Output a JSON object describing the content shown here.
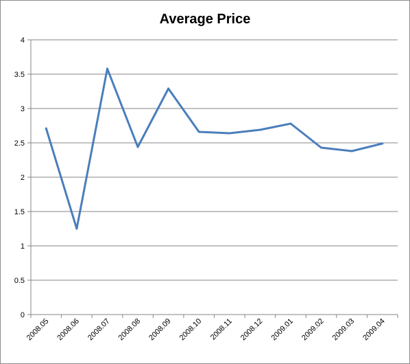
{
  "chart_data": {
    "type": "line",
    "title": "Average Price",
    "xlabel": "",
    "ylabel": "",
    "categories": [
      "2008.05",
      "2008.06",
      "2008.07",
      "2008.08",
      "2008.09",
      "2008.10",
      "2008.11",
      "2008.12",
      "2009.01",
      "2009.02",
      "2009.03",
      "2009.04"
    ],
    "series": [
      {
        "values": [
          2.71,
          1.25,
          3.58,
          2.44,
          3.29,
          2.66,
          2.64,
          2.69,
          2.78,
          2.43,
          2.38,
          2.49
        ]
      }
    ],
    "ylim": [
      0,
      4
    ],
    "yticks": [
      "0",
      "0.5",
      "1",
      "1.5",
      "2",
      "2.5",
      "3",
      "3.5",
      "4"
    ],
    "grid": true,
    "legend": "none",
    "colors": {
      "line": "#4a7ebb",
      "grid": "#868686",
      "axis": "#868686"
    }
  }
}
